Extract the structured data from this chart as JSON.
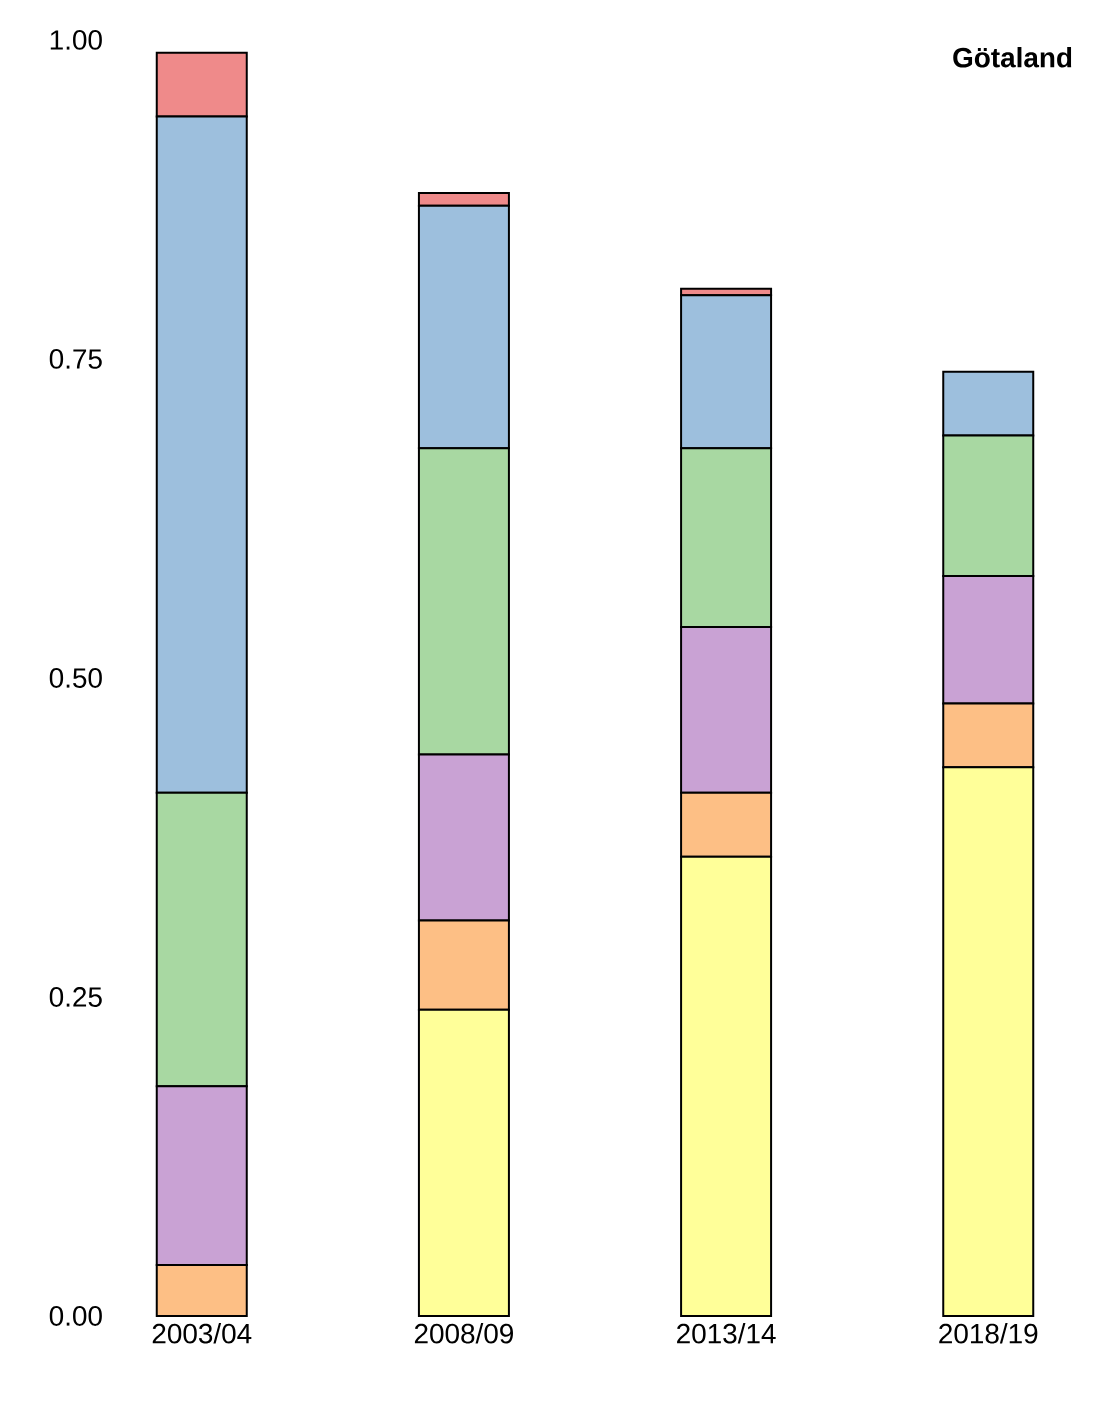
{
  "chart_data": {
    "type": "bar",
    "title": "Götaland",
    "stacked": true,
    "categories": [
      "2003/04",
      "2008/09",
      "2013/14",
      "2018/19"
    ],
    "ylim": [
      0,
      1
    ],
    "yticks": [
      {
        "value": 0,
        "label": "0.00"
      },
      {
        "value": 0.25,
        "label": "0.25"
      },
      {
        "value": 0.5,
        "label": "0.50"
      },
      {
        "value": 0.75,
        "label": "0.75"
      },
      {
        "value": 1,
        "label": "1.00"
      }
    ],
    "series": [
      {
        "color": "#ffff99",
        "values": [
          0,
          0.24,
          0.36,
          0.43
        ]
      },
      {
        "color": "#fdbf85",
        "values": [
          0.04,
          0.07,
          0.05,
          0.05
        ]
      },
      {
        "color": "#c9a2d4",
        "values": [
          0.14,
          0.13,
          0.13,
          0.1
        ]
      },
      {
        "color": "#a8d8a2",
        "values": [
          0.23,
          0.24,
          0.14,
          0.11
        ]
      },
      {
        "color": "#9dbfdd",
        "values": [
          0.53,
          0.19,
          0.12,
          0.05
        ]
      },
      {
        "color": "#ef8a8a",
        "values": [
          0.05,
          0.01,
          0.005,
          0
        ]
      }
    ]
  }
}
